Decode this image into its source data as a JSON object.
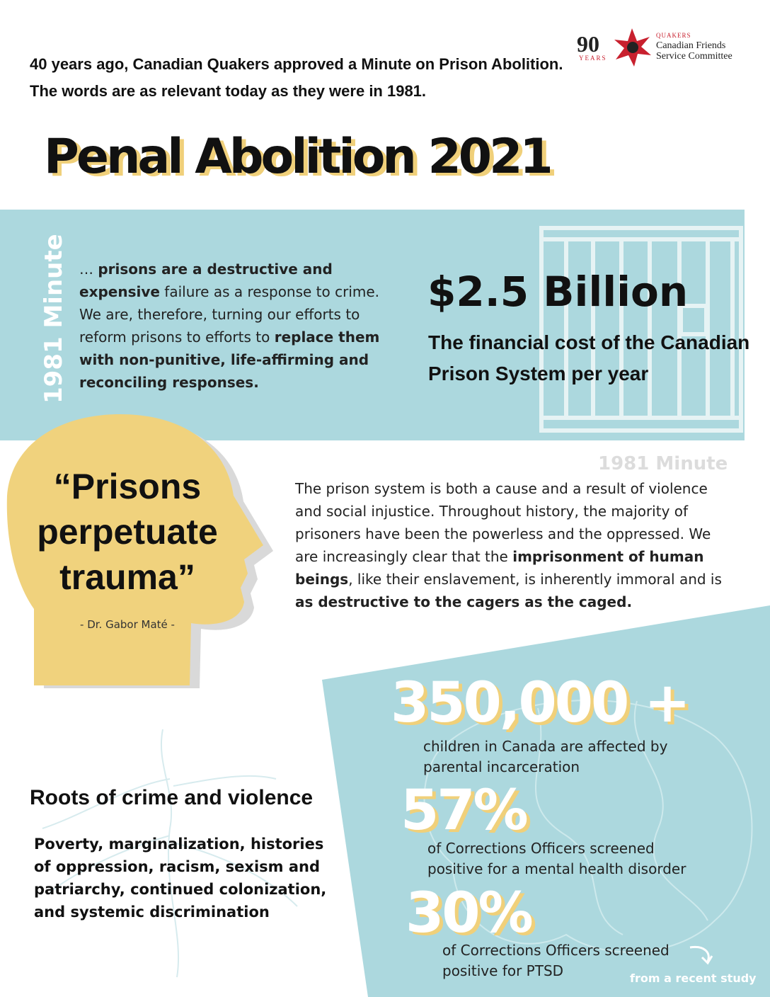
{
  "intro": "40 years ago, Canadian Quakers approved a Minute on Prison Abolition. The words are as relevant today as they were in 1981.",
  "logo": {
    "number": "90",
    "years": "YEARS",
    "org_small": "QUAKERS",
    "org_line1": "Canadian Friends",
    "org_line2": "Service Committee"
  },
  "title": "Penal Abolition 2021",
  "minute_1": {
    "label": "1981 Minute",
    "parts": [
      "… ",
      "prisons are a destructive and expensive",
      " failure as a response to crime. We are, therefore, turning our efforts to reform prisons to efforts to ",
      "replace them with non-punitive, life-affirming and reconciling responses."
    ]
  },
  "cost": {
    "amount": "$2.5 Billion",
    "caption": "The financial cost of the Canadian Prison System per year"
  },
  "quote": {
    "text": "“Prisons perpetuate trauma”",
    "author": "- Dr. Gabor Maté -"
  },
  "minute_2": {
    "label": "1981 Minute",
    "parts": [
      "The prison system is both a cause and a result of violence and social injustice. Throughout history, the majority of prisoners have been the powerless and the oppressed. We are increasingly clear that the ",
      "imprisonment of human beings",
      ", like their enslavement, is inherently immoral and is ",
      "as destructive to the cagers as the caged."
    ]
  },
  "stats": [
    {
      "figure": "350,000 +",
      "text": "children in Canada are affected by parental incarceration"
    },
    {
      "figure": "57%",
      "text": "of Corrections Officers screened positive for a mental health disorder"
    },
    {
      "figure": "30%",
      "text": "of Corrections Officers screened positive for PTSD"
    }
  ],
  "stats_note": "from a recent study",
  "roots": {
    "title": "Roots of crime and violence",
    "text": "Poverty, marginalization, histories of oppression, racism, sexism and patriarchy, continued colonization, and systemic discrimination"
  }
}
